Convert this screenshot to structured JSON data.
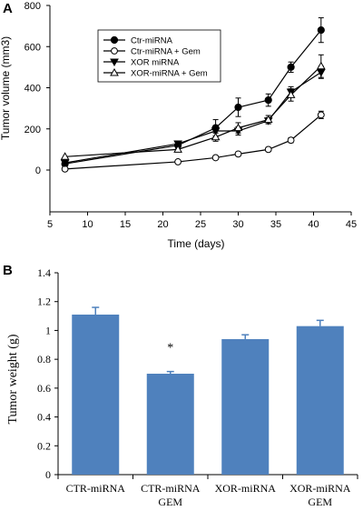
{
  "chart_data": [
    {
      "panel_label": "A",
      "type": "line",
      "xlabel": "Time (days)",
      "ylabel": "Tumor volume (mm3)",
      "xlim": [
        5,
        45
      ],
      "ylim": [
        0,
        800
      ],
      "x_ticks": [
        "5",
        "10",
        "15",
        "20",
        "25",
        "30",
        "35",
        "40",
        "45"
      ],
      "y_ticks": [
        "0",
        "200",
        "400",
        "600",
        "800"
      ],
      "grid": false,
      "legend_position": "top-left",
      "x": [
        7,
        22,
        27,
        30,
        34,
        37,
        41
      ],
      "series": [
        {
          "name": "Ctr-miRNA",
          "marker": "filled-circle",
          "values": [
            30,
            120,
            205,
            305,
            340,
            500,
            680
          ],
          "errors": [
            0,
            15,
            40,
            45,
            30,
            25,
            60
          ]
        },
        {
          "name": "Ctr-miRNA + Gem",
          "marker": "open-circle",
          "values": [
            5,
            40,
            60,
            78,
            100,
            145,
            268
          ],
          "errors": [
            0,
            6,
            8,
            10,
            10,
            12,
            18
          ]
        },
        {
          "name": "XOR miRNA",
          "marker": "filled-triangle-down",
          "values": [
            35,
            128,
            190,
            190,
            240,
            380,
            475
          ],
          "errors": [
            0,
            12,
            25,
            20,
            15,
            25,
            30
          ]
        },
        {
          "name": "XOR-miRNA + Gem",
          "marker": "open-triangle",
          "values": [
            65,
            100,
            160,
            205,
            245,
            365,
            505
          ],
          "errors": [
            0,
            10,
            20,
            25,
            20,
            30,
            55
          ]
        }
      ]
    },
    {
      "panel_label": "B",
      "type": "bar",
      "ylabel": "Tumor weight (g)",
      "ylim": [
        0,
        1.4
      ],
      "y_ticks": [
        "0",
        "0.2",
        "0.4",
        "0.6",
        "0.8",
        "1",
        "1.2",
        "1.4"
      ],
      "grid": false,
      "bar_color": "#4f81bd",
      "categories": [
        {
          "line1": "CTR-miRNA",
          "line2": ""
        },
        {
          "line1": "CTR-miRNA",
          "line2": "GEM"
        },
        {
          "line1": "XOR-miRNA",
          "line2": ""
        },
        {
          "line1": "XOR-miRNA",
          "line2": "GEM"
        }
      ],
      "values": [
        1.11,
        0.7,
        0.94,
        1.03
      ],
      "errors": [
        0.05,
        0.015,
        0.03,
        0.04
      ],
      "annotations": [
        "",
        "*",
        "",
        ""
      ]
    }
  ]
}
